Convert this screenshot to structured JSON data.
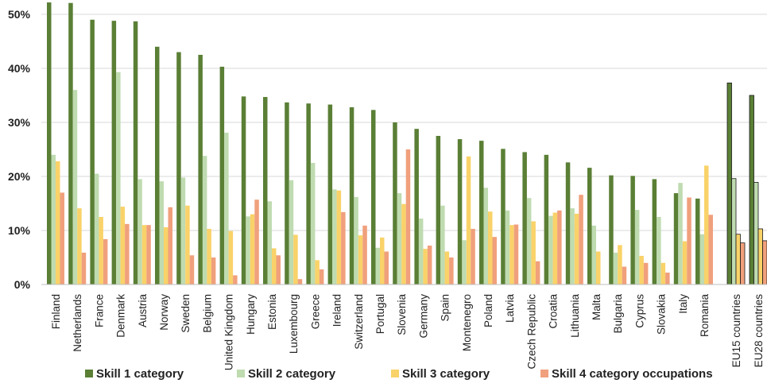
{
  "chart_data": {
    "type": "bar",
    "title": "",
    "xlabel": "",
    "ylabel": "",
    "ylim": [
      0,
      50
    ],
    "y_ticks": [
      0,
      10,
      20,
      30,
      40,
      50
    ],
    "y_tick_labels": [
      "0%",
      "10%",
      "20%",
      "30%",
      "40%",
      "50%"
    ],
    "grid": true,
    "legend_position": "bottom",
    "categories": [
      "Finland",
      "Netherlands",
      "France",
      "Denmark",
      "Austria",
      "Norway",
      "Sweden",
      "Belgium",
      "United Kingdom",
      "Hungary",
      "Estonia",
      "Luxembourg",
      "Greece",
      "Ireland",
      "Switzerland",
      "Portugal",
      "Slovenia",
      "Germany",
      "Spain",
      "Montenegro",
      "Poland",
      "Latvia",
      "Czech Republic",
      "Croatia",
      "Lithuania",
      "Malta",
      "Bulgaria",
      "Cyprus",
      "Slovakia",
      "Italy",
      "Romania"
    ],
    "aggregate_categories": [
      "EU15 countries",
      "EU28 countries"
    ],
    "series": [
      {
        "name": "Skill 1 category",
        "color": "#5a7f35",
        "values": [
          52.2,
          52.1,
          49.0,
          48.8,
          48.7,
          44.0,
          43.0,
          42.5,
          40.3,
          34.8,
          34.7,
          33.7,
          33.5,
          33.3,
          32.8,
          32.3,
          30.0,
          28.8,
          27.5,
          26.9,
          26.6,
          25.1,
          24.5,
          24.0,
          22.6,
          21.6,
          20.2,
          20.1,
          19.5,
          16.9,
          15.9
        ],
        "aggregate_values": [
          37.3,
          35.0
        ]
      },
      {
        "name": "Skill 2 category",
        "color": "#bfdbb0",
        "values": [
          24.0,
          36.0,
          20.5,
          39.3,
          19.5,
          19.1,
          19.8,
          23.8,
          28.1,
          12.6,
          15.4,
          19.3,
          22.5,
          17.6,
          16.2,
          6.8,
          16.9,
          12.2,
          14.6,
          8.2,
          17.9,
          13.7,
          16.0,
          12.7,
          14.1,
          10.9,
          5.9,
          13.8,
          12.5,
          18.8,
          9.3
        ],
        "aggregate_values": [
          19.6,
          18.9
        ]
      },
      {
        "name": "Skill 3 category",
        "color": "#f9d269",
        "values": [
          22.8,
          14.1,
          12.5,
          14.4,
          11.0,
          10.6,
          14.6,
          10.3,
          9.9,
          13.0,
          6.7,
          9.2,
          4.5,
          17.4,
          9.1,
          8.7,
          14.9,
          6.6,
          6.1,
          23.7,
          13.5,
          11.0,
          11.7,
          13.3,
          13.1,
          6.1,
          7.3,
          5.3,
          4.0,
          8.0,
          22.0
        ],
        "aggregate_values": [
          9.3,
          10.3
        ]
      },
      {
        "name": "Skill 4 category occupations",
        "color": "#f0a07c",
        "values": [
          17.0,
          5.9,
          8.4,
          11.2,
          11.0,
          14.3,
          5.4,
          5.0,
          1.7,
          15.7,
          5.4,
          1.0,
          2.8,
          13.4,
          10.9,
          6.1,
          25.0,
          7.2,
          5.0,
          10.3,
          8.8,
          11.1,
          4.3,
          13.7,
          16.6,
          0.0,
          3.3,
          4.0,
          2.2,
          16.1,
          12.9
        ],
        "aggregate_values": [
          7.7,
          8.1
        ]
      }
    ]
  }
}
